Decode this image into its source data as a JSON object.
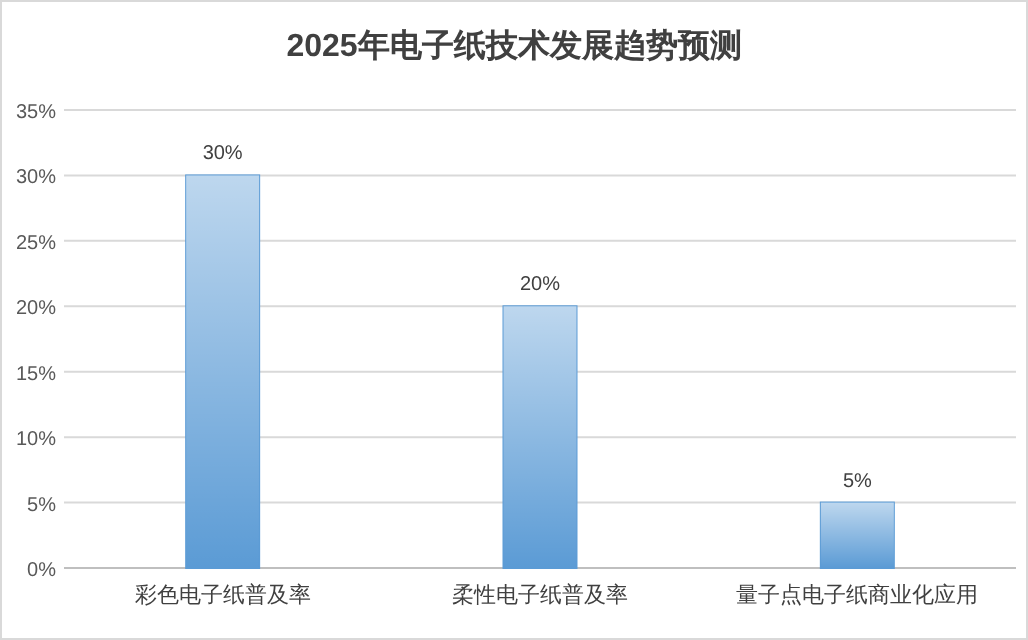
{
  "chart_data": {
    "type": "bar",
    "title": "2025年电子纸技术发展趋势预测",
    "categories": [
      "彩色电子纸普及率",
      "柔性电子纸普及率",
      "量子点电子纸商业化应用"
    ],
    "values": [
      30,
      20,
      5
    ],
    "value_labels": [
      "30%",
      "20%",
      "5%"
    ],
    "color": "#5b9bd5",
    "ylim": [
      0,
      35
    ],
    "yticks": [
      {
        "value": 0,
        "label": "0%"
      },
      {
        "value": 5,
        "label": "5%"
      },
      {
        "value": 10,
        "label": "10%"
      },
      {
        "value": 15,
        "label": "15%"
      },
      {
        "value": 20,
        "label": "20%"
      },
      {
        "value": 25,
        "label": "25%"
      },
      {
        "value": 30,
        "label": "30%"
      },
      {
        "value": 35,
        "label": "35%"
      }
    ],
    "grid": "y"
  }
}
